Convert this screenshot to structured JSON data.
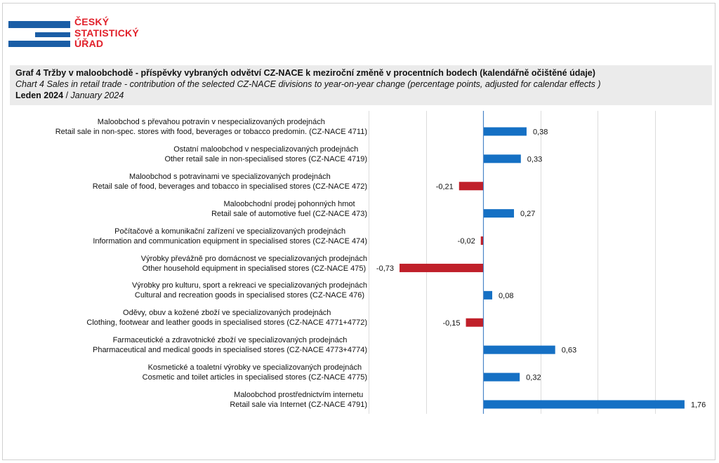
{
  "logo": {
    "line1": "ČESKÝ",
    "line2": "STATISTICKÝ",
    "line3": "ÚŘAD",
    "color_text": "#e1202a",
    "color_bars": "#1b5ea6"
  },
  "header": {
    "title_cz": "Graf 4 Tržby v maloobchodě  - příspěvky vybraných odvětví CZ-NACE  k meziroční  změně v procentních bodech (kalendářně  očištěné  údaje)",
    "title_en": "Chart 4 Sales in retail trade - contribution of the selected CZ-NACE divisions to year-on-year change (percentage points, adjusted for calendar effects )",
    "period_cz": "Leden 2024",
    "period_sep": " / ",
    "period_en": "January 2024"
  },
  "chart_data": {
    "type": "bar",
    "orientation": "horizontal",
    "categories": [
      {
        "cz": "Maloobchod s převahou potravin v nespecializovaných prodejnách",
        "en": "Retail sale in non-spec. stores with food, beverages or tobacco predomin. (CZ-NACE 4711)"
      },
      {
        "cz": "Ostatní maloobchod v nespecializovaných prodejnách",
        "en": "Other retail sale in non-specialised stores (CZ-NACE 4719)"
      },
      {
        "cz": "Maloobchod s potravinami ve specializovaných prodejnách",
        "en": "Retail sale of food, beverages and tobacco in specialised stores (CZ-NACE 472)"
      },
      {
        "cz": "Maloobchodní prodej pohonných hmot",
        "en": "Retail sale of automotive fuel (CZ-NACE 473)"
      },
      {
        "cz": "Počítačové a komunikační zařízení ve specializovaných prodejnách",
        "en": "Information and communication equipment in specialised stores (CZ-NACE 474)"
      },
      {
        "cz": "Výrobky převážně pro domácnost ve specializovaných prodejnách",
        "en": "Other household equipment in specialised stores (CZ-NACE 475)"
      },
      {
        "cz": "Výrobky pro kulturu, sport a rekreaci ve specializovaných prodejnách",
        "en": "Cultural and recreation goods in specialised stores (CZ-NACE 476)"
      },
      {
        "cz": "Oděvy, obuv a kožené zboží ve specializovaných prodejnách",
        "en": "Clothing, footwear and leather goods in specialised stores (CZ-NACE 4771+4772)"
      },
      {
        "cz": "Farmaceutické a zdravotnické zboží ve specializovaných prodejnách",
        "en": "Pharmaceutical and medical goods in specialised stores (CZ-NACE 4773+4774)"
      },
      {
        "cz": "Kosmetické a toaletní výrobky ve specializovaných prodejnách",
        "en": "Cosmetic and toilet articles in specialised stores (CZ-NACE 4775)"
      },
      {
        "cz": "Maloobchod prostřednictvím internetu",
        "en": "Retail sale via Internet (CZ-NACE 4791)"
      }
    ],
    "values": [
      0.38,
      0.33,
      -0.21,
      0.27,
      -0.02,
      -0.73,
      0.08,
      -0.15,
      0.63,
      0.32,
      1.76
    ],
    "value_labels": [
      "0,38",
      "0,33",
      "-0,21",
      "0,27",
      "-0,02",
      "-0,73",
      "0,08",
      "-0,15",
      "0,63",
      "0,32",
      "1,76"
    ],
    "xlim": [
      -1.0,
      2.0
    ],
    "grid_step": 0.5,
    "grid": true,
    "colors": {
      "positive": "#1570c4",
      "negative": "#c0202a",
      "grid": "#dcdcdc",
      "axis": "#4a86c8"
    }
  }
}
